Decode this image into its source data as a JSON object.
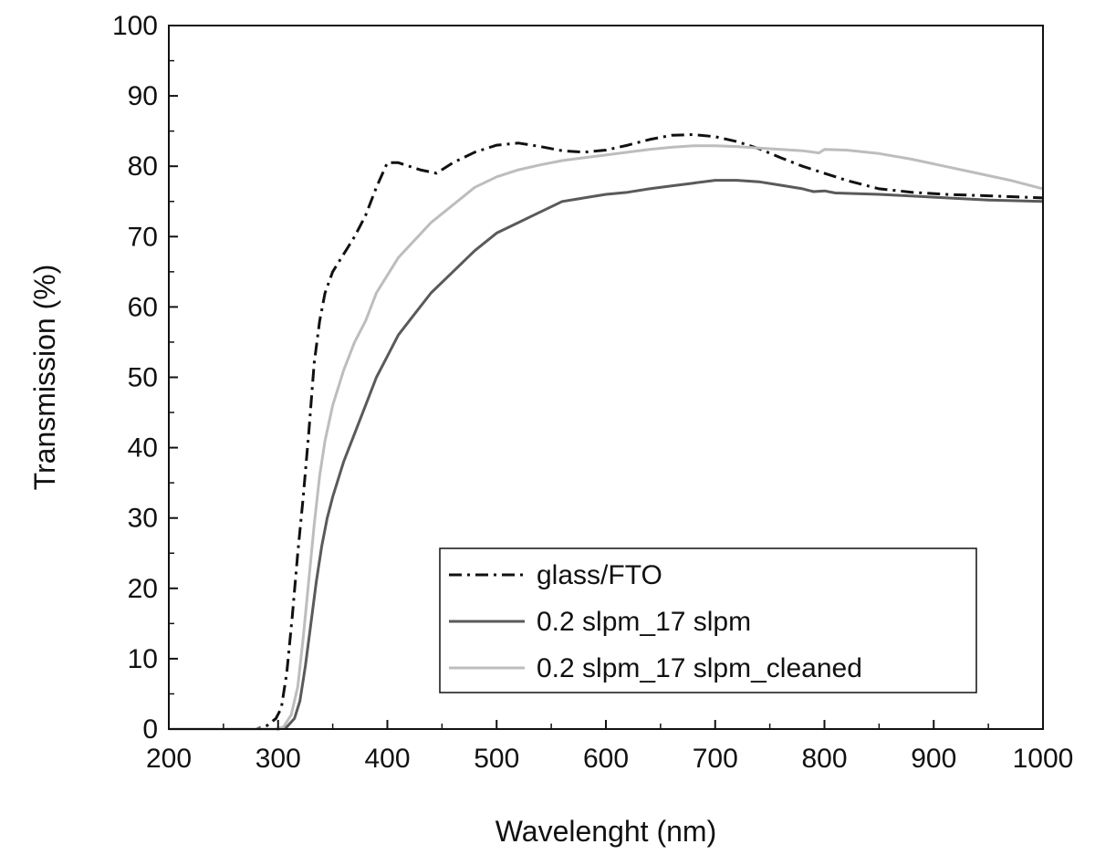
{
  "chart_data": {
    "type": "line",
    "xlabel": "Wavelenght (nm)",
    "ylabel": "Transmission (%)",
    "xlim": [
      200,
      1000
    ],
    "ylim": [
      0,
      100
    ],
    "x_ticks": [
      200,
      300,
      400,
      500,
      600,
      700,
      800,
      900,
      1000
    ],
    "y_ticks": [
      0,
      10,
      20,
      30,
      40,
      50,
      60,
      70,
      80,
      90,
      100
    ],
    "grid": false,
    "legend_position": "bottom-right",
    "series": [
      {
        "name": "glass/FTO",
        "color": "#111111",
        "dash": "dash-dot",
        "points": [
          [
            200,
            0
          ],
          [
            280,
            0
          ],
          [
            290,
            0.5
          ],
          [
            298,
            1.5
          ],
          [
            303,
            3
          ],
          [
            308,
            8
          ],
          [
            313,
            16
          ],
          [
            318,
            25
          ],
          [
            323,
            33
          ],
          [
            328,
            42
          ],
          [
            333,
            52
          ],
          [
            338,
            58
          ],
          [
            343,
            62
          ],
          [
            350,
            65
          ],
          [
            360,
            67.5
          ],
          [
            370,
            70
          ],
          [
            380,
            73
          ],
          [
            390,
            77
          ],
          [
            400,
            80.5
          ],
          [
            410,
            80.5
          ],
          [
            420,
            80
          ],
          [
            430,
            79.5
          ],
          [
            445,
            79
          ],
          [
            460,
            80.5
          ],
          [
            480,
            82
          ],
          [
            500,
            83
          ],
          [
            520,
            83.3
          ],
          [
            540,
            82.8
          ],
          [
            560,
            82.2
          ],
          [
            580,
            82
          ],
          [
            600,
            82.3
          ],
          [
            620,
            83
          ],
          [
            640,
            83.8
          ],
          [
            660,
            84.4
          ],
          [
            680,
            84.5
          ],
          [
            700,
            84.2
          ],
          [
            720,
            83.5
          ],
          [
            740,
            82.5
          ],
          [
            760,
            81.2
          ],
          [
            780,
            80
          ],
          [
            800,
            79
          ],
          [
            820,
            78
          ],
          [
            850,
            76.8
          ],
          [
            880,
            76.3
          ],
          [
            910,
            76
          ],
          [
            950,
            75.8
          ],
          [
            1000,
            75.5
          ]
        ]
      },
      {
        "name": "0.2 slpm_17 slpm",
        "color": "#5a5a5a",
        "dash": "solid",
        "points": [
          [
            200,
            0
          ],
          [
            300,
            0
          ],
          [
            308,
            0.3
          ],
          [
            315,
            1.5
          ],
          [
            320,
            4
          ],
          [
            325,
            9
          ],
          [
            330,
            15
          ],
          [
            335,
            21
          ],
          [
            340,
            26
          ],
          [
            345,
            30
          ],
          [
            350,
            33
          ],
          [
            360,
            38
          ],
          [
            370,
            42
          ],
          [
            380,
            46
          ],
          [
            390,
            50
          ],
          [
            400,
            53
          ],
          [
            410,
            56
          ],
          [
            425,
            59
          ],
          [
            440,
            62
          ],
          [
            460,
            65
          ],
          [
            480,
            68
          ],
          [
            500,
            70.5
          ],
          [
            520,
            72
          ],
          [
            540,
            73.5
          ],
          [
            560,
            75
          ],
          [
            580,
            75.5
          ],
          [
            600,
            76
          ],
          [
            620,
            76.3
          ],
          [
            640,
            76.8
          ],
          [
            660,
            77.2
          ],
          [
            680,
            77.6
          ],
          [
            700,
            78
          ],
          [
            720,
            78
          ],
          [
            740,
            77.8
          ],
          [
            760,
            77.3
          ],
          [
            780,
            76.8
          ],
          [
            790,
            76.4
          ],
          [
            800,
            76.5
          ],
          [
            810,
            76.2
          ],
          [
            850,
            76
          ],
          [
            900,
            75.6
          ],
          [
            950,
            75.2
          ],
          [
            1000,
            75
          ]
        ]
      },
      {
        "name": "0.2 slpm_17 slpm_cleaned",
        "color": "#bdbdbd",
        "dash": "solid",
        "points": [
          [
            200,
            0
          ],
          [
            298,
            0
          ],
          [
            305,
            0.3
          ],
          [
            312,
            2
          ],
          [
            318,
            6
          ],
          [
            323,
            13
          ],
          [
            328,
            21
          ],
          [
            333,
            29
          ],
          [
            338,
            36
          ],
          [
            343,
            41
          ],
          [
            350,
            46
          ],
          [
            360,
            51
          ],
          [
            370,
            55
          ],
          [
            380,
            58
          ],
          [
            390,
            62
          ],
          [
            400,
            64.5
          ],
          [
            410,
            67
          ],
          [
            425,
            69.5
          ],
          [
            440,
            72
          ],
          [
            460,
            74.5
          ],
          [
            480,
            77
          ],
          [
            500,
            78.5
          ],
          [
            520,
            79.5
          ],
          [
            540,
            80.2
          ],
          [
            560,
            80.8
          ],
          [
            580,
            81.2
          ],
          [
            600,
            81.6
          ],
          [
            620,
            82
          ],
          [
            640,
            82.4
          ],
          [
            660,
            82.7
          ],
          [
            680,
            82.9
          ],
          [
            700,
            82.9
          ],
          [
            720,
            82.8
          ],
          [
            740,
            82.6
          ],
          [
            760,
            82.4
          ],
          [
            780,
            82.2
          ],
          [
            795,
            81.9
          ],
          [
            800,
            82.4
          ],
          [
            820,
            82.3
          ],
          [
            850,
            81.8
          ],
          [
            880,
            81
          ],
          [
            910,
            80
          ],
          [
            940,
            79
          ],
          [
            970,
            78
          ],
          [
            1000,
            76.8
          ]
        ]
      }
    ]
  }
}
